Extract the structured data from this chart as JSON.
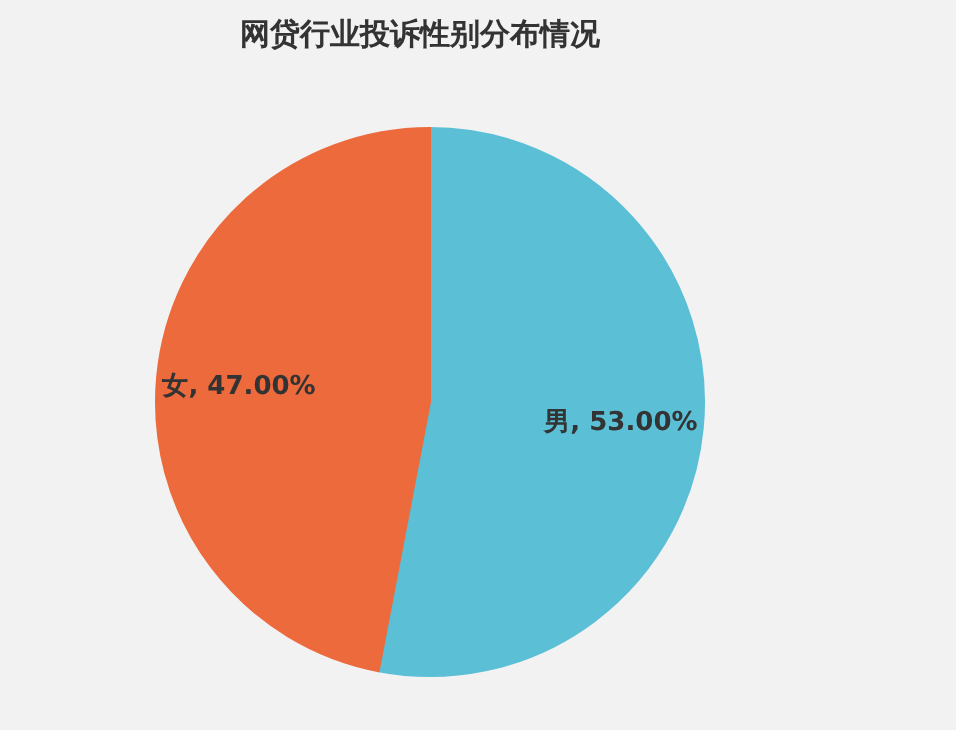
{
  "chart_data": {
    "type": "pie",
    "title": "网贷行业投诉性别分布情况",
    "categories": [
      "男",
      "女"
    ],
    "values": [
      53,
      47
    ],
    "value_labels": [
      "53.00%",
      "47.00%"
    ],
    "colors": [
      "#5bbfd6",
      "#ec6a3c"
    ],
    "legend": false
  }
}
